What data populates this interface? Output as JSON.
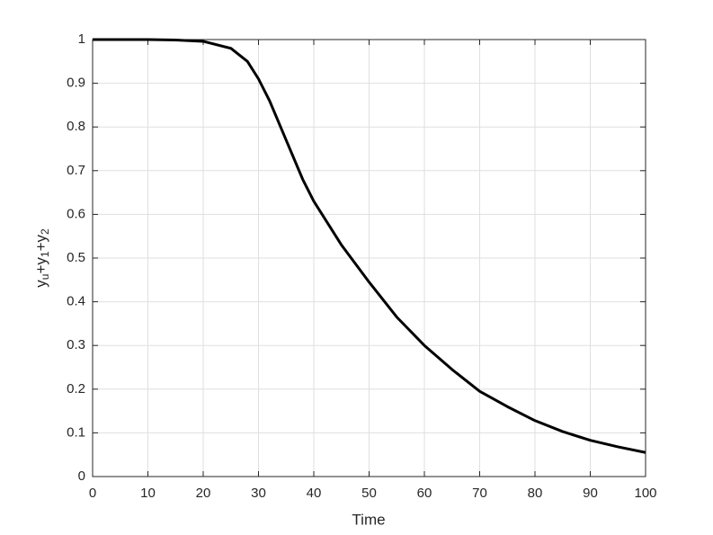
{
  "chart_data": {
    "type": "line",
    "xlabel": "Time",
    "ylabel": [
      "y",
      "u",
      "+y",
      "1",
      "+y",
      "2"
    ],
    "x": [
      0,
      5,
      10,
      15,
      20,
      25,
      28,
      30,
      32,
      35,
      38,
      40,
      45,
      50,
      55,
      60,
      65,
      70,
      75,
      80,
      85,
      90,
      95,
      100
    ],
    "series": [
      {
        "color": "#000000",
        "values": [
          1.0,
          1.0,
          1.0,
          0.999,
          0.996,
          0.98,
          0.95,
          0.91,
          0.86,
          0.77,
          0.68,
          0.63,
          0.53,
          0.445,
          0.365,
          0.3,
          0.245,
          0.195,
          0.16,
          0.128,
          0.103,
          0.083,
          0.068,
          0.055
        ]
      }
    ],
    "xlim": [
      0,
      100
    ],
    "xticks": [
      0,
      10,
      20,
      30,
      40,
      50,
      60,
      70,
      80,
      90,
      100
    ],
    "ylim": [
      0,
      1
    ],
    "yticks": [
      0,
      0.1,
      0.2,
      0.3,
      0.4,
      0.5,
      0.6,
      0.7,
      0.8,
      0.9,
      1
    ],
    "grid": true
  }
}
